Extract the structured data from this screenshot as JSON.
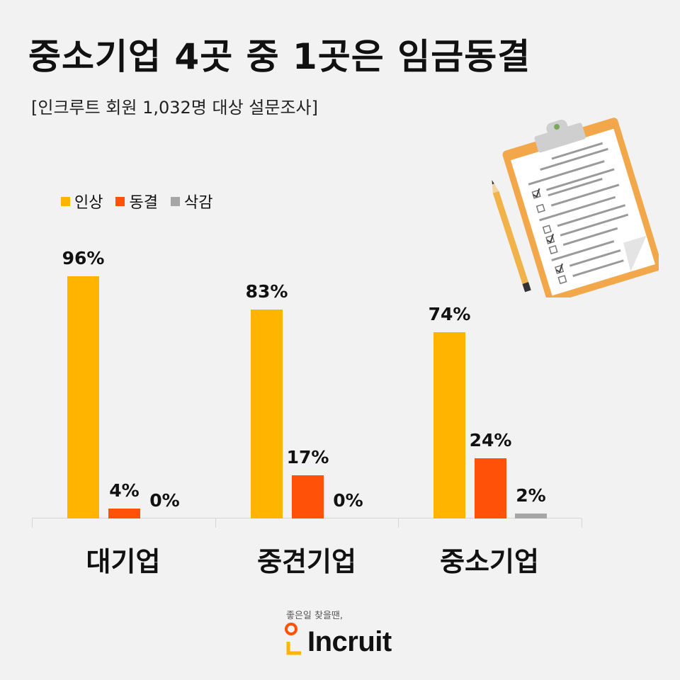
{
  "header": {
    "title": "중소기업 4곳 중 1곳은 임금동결",
    "subtitle": "[인크루트 회원 1,032명 대상 설문조사]"
  },
  "legend": [
    {
      "label": "인상",
      "color": "#FFB400"
    },
    {
      "label": "동결",
      "color": "#FF5208"
    },
    {
      "label": "삭감",
      "color": "#A6A6A6"
    }
  ],
  "chart_data": {
    "type": "bar",
    "title": "중소기업 4곳 중 1곳은 임금동결",
    "subtitle": "[인크루트 회원 1,032명 대상 설문조사]",
    "categories": [
      "대기업",
      "중견기업",
      "중소기업"
    ],
    "series": [
      {
        "name": "인상",
        "color": "#FFB400",
        "values": [
          96,
          83,
          74
        ]
      },
      {
        "name": "동결",
        "color": "#FF5208",
        "values": [
          4,
          17,
          24
        ]
      },
      {
        "name": "삭감",
        "color": "#A6A6A6",
        "values": [
          0,
          0,
          2
        ]
      }
    ],
    "labels": [
      [
        "96%",
        "4%",
        "0%"
      ],
      [
        "83%",
        "17%",
        "0%"
      ],
      [
        "74%",
        "24%",
        "2%"
      ]
    ],
    "xlabel": "",
    "ylabel": "",
    "ylim": [
      0,
      100
    ],
    "grid": false,
    "legend_position": "top-left",
    "unit": "%"
  },
  "branding": {
    "tagline": "좋은일 찾을땐,",
    "logo_text": "Incruit"
  },
  "illustration": {
    "icon": "clipboard-checklist-with-pencil"
  }
}
